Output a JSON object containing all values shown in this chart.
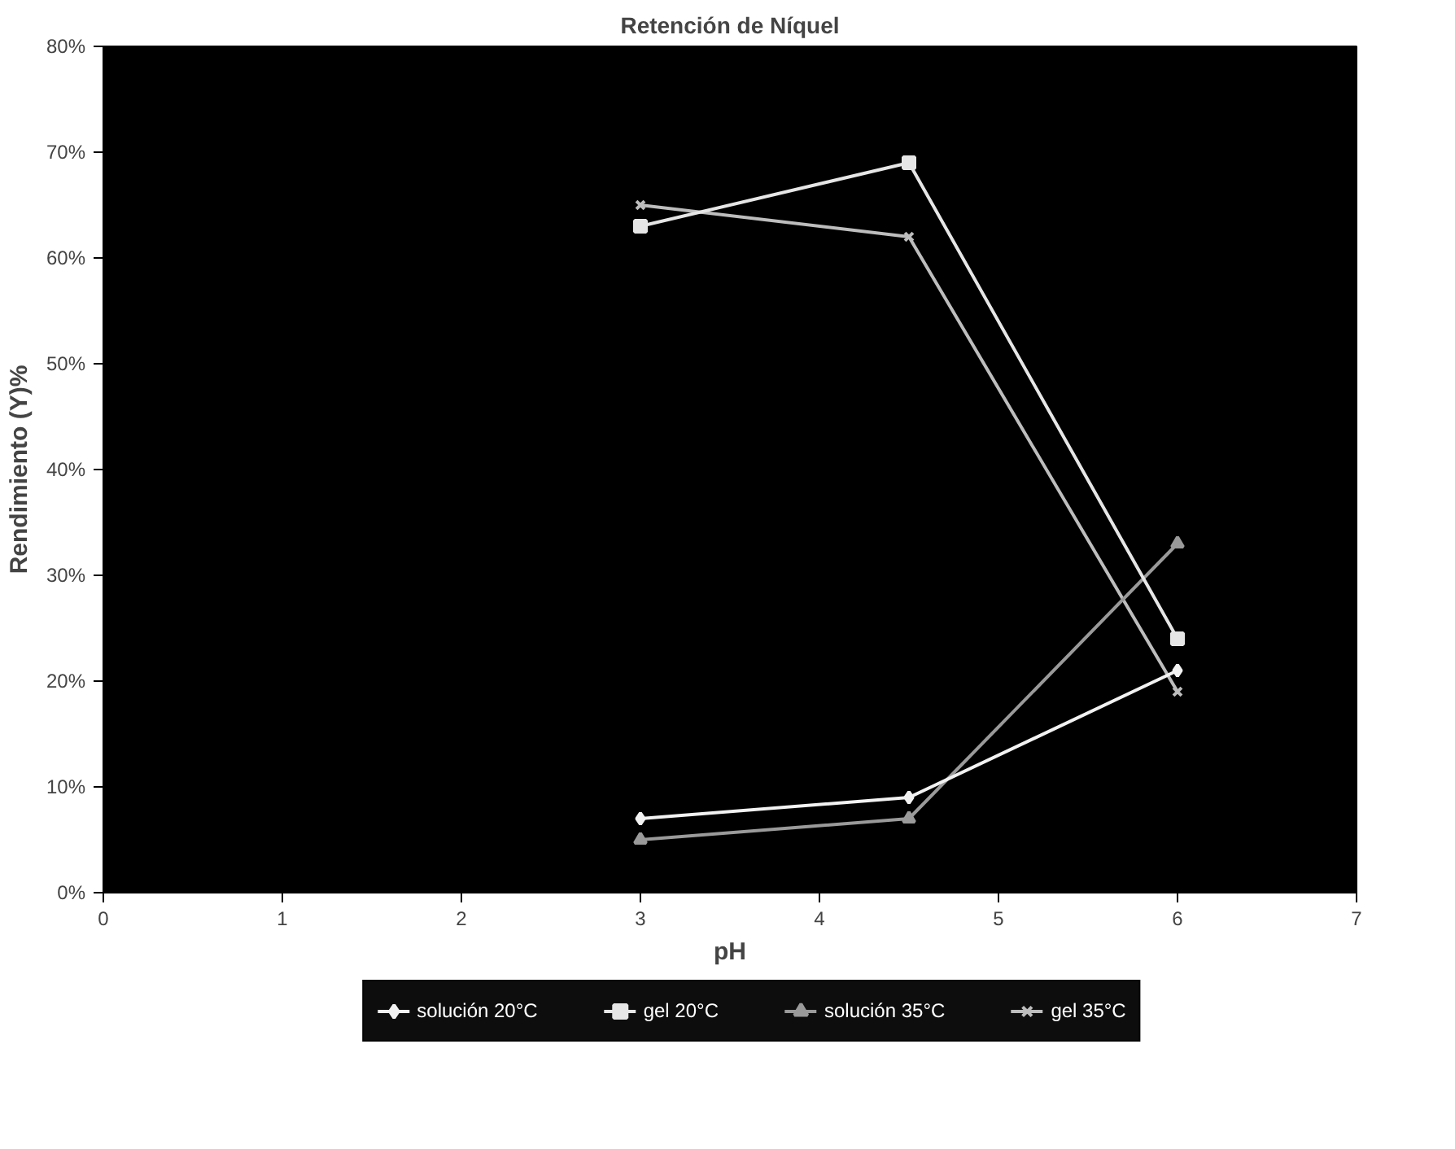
{
  "chart_data": {
    "type": "line",
    "title": "Retención de Níquel",
    "xlabel": "pH",
    "ylabel": "Rendimiento (Y)%",
    "x": [
      3,
      4.5,
      6
    ],
    "series": [
      {
        "name": "solución 20°C",
        "color": "#f2f2f2",
        "values": [
          7,
          9,
          21
        ],
        "marker": "diamond"
      },
      {
        "name": "gel 20°C",
        "color": "#e6e6e6",
        "values": [
          63,
          69,
          24
        ],
        "marker": "square"
      },
      {
        "name": "solución 35°C",
        "color": "#9a9a9a",
        "values": [
          5,
          7,
          33
        ],
        "marker": "triangle"
      },
      {
        "name": "gel 35°C",
        "color": "#bdbdbd",
        "values": [
          65,
          62,
          19
        ],
        "marker": "cross"
      }
    ],
    "xlim": [
      0,
      7
    ],
    "xticks": [
      0,
      1,
      2,
      3,
      4,
      5,
      6,
      7
    ],
    "ylim": [
      0,
      80
    ],
    "yticks": [
      {
        "value": 0,
        "label": "0%"
      },
      {
        "value": 10,
        "label": "10%"
      },
      {
        "value": 20,
        "label": "20%"
      },
      {
        "value": 30,
        "label": "30%"
      },
      {
        "value": 40,
        "label": "40%"
      },
      {
        "value": 50,
        "label": "50%"
      },
      {
        "value": 60,
        "label": "60%"
      },
      {
        "value": 70,
        "label": "70%"
      },
      {
        "value": 80,
        "label": "80%"
      }
    ],
    "grid": false,
    "legend": "bottom",
    "line_style": "solid"
  }
}
